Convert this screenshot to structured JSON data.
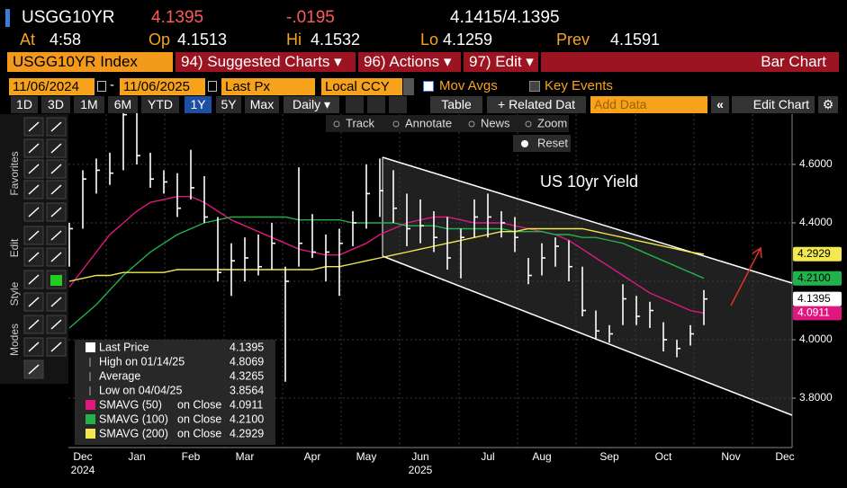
{
  "header": {
    "ticker": "USGG10YR",
    "last": "4.1395",
    "change": "-.0195",
    "bid_ask": "4.1415/4.1395",
    "at_label": "At",
    "at": "4:58",
    "open_label": "Op",
    "open": "4.1513",
    "high_label": "Hi",
    "high": "4.1532",
    "low_label": "Lo",
    "low": "4.1259",
    "prev_label": "Prev",
    "prev": "4.1591"
  },
  "menu": {
    "security": "USGG10YR Index",
    "suggested": "94) Suggested Charts ▾",
    "actions": "96) Actions ▾",
    "edit": "97) Edit ▾",
    "chart_kind": "Bar Chart"
  },
  "settings": {
    "start": "11/06/2024",
    "dash": "-",
    "end": "11/06/2025",
    "field": "Last Px",
    "currency": "Local CCY",
    "mov_avgs": "Mov Avgs",
    "key_events": "Key Events"
  },
  "toolbar": {
    "periods": [
      "1D",
      "3D",
      "1M",
      "6M",
      "YTD",
      "1Y",
      "5Y",
      "Max"
    ],
    "frequency": "Daily ▾",
    "table": "Table",
    "related": "+ Related Dat",
    "add_data": "Add Data",
    "edit_chart": "Edit Chart"
  },
  "side_tabs": [
    "Favorites",
    "Edit",
    "Style",
    "Modes"
  ],
  "chart_tools": [
    "Track",
    "Annotate",
    "News",
    "Zoom",
    "Reset"
  ],
  "chart_data": {
    "type": "ohlc",
    "annotation": "US 10yr Yield",
    "categories": [
      null,
      "Dec",
      null,
      null,
      null,
      "Jan",
      null,
      null,
      null,
      "Feb",
      null,
      null,
      null,
      "Mar",
      null,
      null,
      null,
      null,
      "Apr",
      null,
      null,
      null,
      "May",
      null,
      null,
      null,
      "Jun",
      null,
      null,
      null,
      null,
      "Jul",
      null,
      null,
      null,
      "Aug",
      null,
      null,
      null,
      null,
      "Sep",
      null,
      null,
      null,
      "Oct",
      null,
      null,
      null,
      null,
      "Nov",
      null,
      null,
      null,
      "Dec"
    ],
    "category_years": [
      null,
      "2024",
      null,
      null,
      null,
      null,
      null,
      null,
      null,
      null,
      null,
      null,
      null,
      null,
      null,
      null,
      null,
      null,
      null,
      null,
      null,
      null,
      null,
      null,
      null,
      null,
      "2025",
      null,
      null,
      null,
      null,
      null,
      null,
      null,
      null,
      null,
      null,
      null,
      null,
      null,
      null,
      null,
      null,
      null,
      null,
      null,
      null,
      null,
      null,
      null,
      null,
      null,
      null,
      null
    ],
    "high": [
      4.4,
      4.58,
      4.62,
      4.64,
      4.8069,
      4.79,
      4.64,
      4.58,
      4.57,
      4.65,
      4.56,
      4.42,
      4.33,
      4.35,
      4.36,
      4.4,
      4.25,
      4.59,
      4.43,
      4.36,
      4.38,
      4.44,
      4.6,
      4.62,
      4.58,
      4.5,
      4.48,
      4.44,
      4.42,
      4.38,
      4.48,
      4.5,
      4.44,
      4.42,
      4.28,
      4.33,
      4.35,
      4.34,
      4.25,
      4.1,
      4.05,
      4.19,
      4.15,
      4.13,
      4.06,
      4.0,
      4.05,
      4.17,
      null,
      null,
      null,
      null,
      null,
      null
    ],
    "low": [
      4.25,
      4.38,
      4.5,
      4.53,
      4.58,
      4.6,
      4.52,
      4.5,
      4.42,
      4.48,
      4.4,
      4.2,
      4.15,
      4.2,
      4.22,
      4.24,
      3.8564,
      4.25,
      4.28,
      4.2,
      4.15,
      4.32,
      4.38,
      4.42,
      4.4,
      4.32,
      4.33,
      4.3,
      4.24,
      4.21,
      4.35,
      4.35,
      4.35,
      4.3,
      4.19,
      4.22,
      4.25,
      4.2,
      4.08,
      4.0,
      3.99,
      4.05,
      4.05,
      4.04,
      3.96,
      3.94,
      3.98,
      4.05,
      null,
      null,
      null,
      null,
      null,
      null
    ],
    "close": [
      4.38,
      4.55,
      4.58,
      4.57,
      4.77,
      4.63,
      4.55,
      4.54,
      4.45,
      4.52,
      4.42,
      4.23,
      4.27,
      4.28,
      4.25,
      4.33,
      4.2,
      4.33,
      4.3,
      4.3,
      4.33,
      4.4,
      4.5,
      4.51,
      4.45,
      4.38,
      4.39,
      4.35,
      4.28,
      4.35,
      4.42,
      4.42,
      4.4,
      4.35,
      4.22,
      4.28,
      4.32,
      4.25,
      4.1,
      4.03,
      4.02,
      4.14,
      4.08,
      4.1,
      4.0,
      3.97,
      4.02,
      4.1395,
      null,
      null,
      null,
      null,
      null,
      null
    ],
    "color": "#ffffff",
    "legend": {
      "last_label": "Last Price",
      "high_label": "High on 01/14/25",
      "average_label": "Average",
      "average": 4.3265,
      "low_label": "Low on 04/04/25"
    },
    "series": [
      {
        "name": "SMAVG (50)",
        "basis": "on Close",
        "color": "#e0177f",
        "value_label": "4.0911",
        "values": [
          4.18,
          4.24,
          4.3,
          4.36,
          4.4,
          4.44,
          4.47,
          4.48,
          4.49,
          4.49,
          4.47,
          4.44,
          4.41,
          4.39,
          4.37,
          4.35,
          4.33,
          4.31,
          4.3,
          4.29,
          4.29,
          4.31,
          4.33,
          4.36,
          4.38,
          4.4,
          4.41,
          4.42,
          4.42,
          4.41,
          4.4,
          4.4,
          4.4,
          4.39,
          4.38,
          4.37,
          4.36,
          4.34,
          4.31,
          4.28,
          4.25,
          4.22,
          4.19,
          4.16,
          4.14,
          4.12,
          4.1,
          4.0911,
          null,
          null,
          null,
          null,
          null,
          null
        ]
      },
      {
        "name": "SMAVG (100)",
        "basis": "on Close",
        "color": "#22b24c",
        "value_label": "4.2100",
        "values": [
          4.04,
          4.08,
          4.12,
          4.17,
          4.22,
          4.26,
          4.3,
          4.33,
          4.36,
          4.38,
          4.4,
          4.41,
          4.42,
          4.42,
          4.42,
          4.42,
          4.42,
          4.41,
          4.41,
          4.41,
          4.41,
          4.4,
          4.4,
          4.4,
          4.4,
          4.39,
          4.39,
          4.39,
          4.38,
          4.38,
          4.38,
          4.38,
          4.38,
          4.37,
          4.37,
          4.37,
          4.36,
          4.36,
          4.35,
          4.35,
          4.34,
          4.33,
          4.31,
          4.29,
          4.27,
          4.25,
          4.23,
          4.21,
          null,
          null,
          null,
          null,
          null,
          null
        ]
      },
      {
        "name": "SMAVG (200)",
        "basis": "on Close",
        "color": "#f2e94e",
        "value_label": "4.2929",
        "values": [
          4.2,
          4.21,
          4.22,
          4.22,
          4.23,
          4.23,
          4.23,
          4.23,
          4.24,
          4.24,
          4.24,
          4.24,
          4.24,
          4.24,
          4.24,
          4.24,
          4.24,
          4.24,
          4.24,
          4.25,
          4.25,
          4.26,
          4.27,
          4.28,
          4.29,
          4.3,
          4.31,
          4.32,
          4.33,
          4.34,
          4.35,
          4.36,
          4.37,
          4.37,
          4.38,
          4.38,
          4.38,
          4.38,
          4.38,
          4.37,
          4.36,
          4.35,
          4.34,
          4.33,
          4.32,
          4.31,
          4.3,
          4.2929,
          null,
          null,
          null,
          null,
          null,
          null
        ]
      }
    ],
    "ylim": [
      3.631,
      4.772
    ],
    "yticks": [
      {
        "value": 3.8,
        "label": "3.8000"
      },
      {
        "value": 4.0,
        "label": "4.0000"
      },
      {
        "value": 4.2,
        "label": "4.2000"
      },
      {
        "value": 4.4,
        "label": "4.4000"
      },
      {
        "value": 4.6,
        "label": "4.6000"
      }
    ],
    "grid": true
  }
}
